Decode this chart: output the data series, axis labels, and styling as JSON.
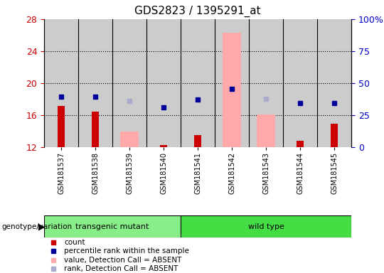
{
  "title": "GDS2823 / 1395291_at",
  "samples": [
    "GSM181537",
    "GSM181538",
    "GSM181539",
    "GSM181540",
    "GSM181541",
    "GSM181542",
    "GSM181543",
    "GSM181544",
    "GSM181545"
  ],
  "group_transgenic": [
    0,
    1,
    2,
    3
  ],
  "group_wildtype": [
    4,
    5,
    6,
    7,
    8
  ],
  "ylim_left": [
    12,
    28
  ],
  "ylim_right": [
    0,
    100
  ],
  "yticks_left": [
    12,
    16,
    20,
    24,
    28
  ],
  "yticks_right": [
    0,
    25,
    50,
    75,
    100
  ],
  "ytick_right_labels": [
    "0",
    "25",
    "50",
    "75",
    "100%"
  ],
  "red_bars": [
    17.2,
    16.5,
    null,
    12.3,
    13.5,
    null,
    null,
    12.8,
    15.0
  ],
  "pink_bars": [
    null,
    null,
    14.0,
    null,
    null,
    26.3,
    16.1,
    null,
    null
  ],
  "blue_squares": [
    18.3,
    18.3,
    null,
    17.0,
    18.0,
    19.3,
    null,
    17.5,
    17.5
  ],
  "lightblue_squares": [
    null,
    null,
    17.8,
    null,
    null,
    null,
    18.1,
    null,
    null
  ],
  "bar_bottom": 12,
  "red_color": "#cc0000",
  "pink_color": "#ffaaaa",
  "blue_color": "#000099",
  "lightblue_color": "#aaaacc",
  "group_color_transgenic": "#88ee88",
  "group_color_wildtype": "#44dd44",
  "bg_color": "#cccccc",
  "left_axis_color": "#cc0000",
  "right_axis_color": "#0000cc",
  "grid_yticks": [
    16,
    20,
    24
  ],
  "legend_items": [
    {
      "color": "#cc0000",
      "label": "count"
    },
    {
      "color": "#000099",
      "label": "percentile rank within the sample"
    },
    {
      "color": "#ffaaaa",
      "label": "value, Detection Call = ABSENT"
    },
    {
      "color": "#aaaacc",
      "label": "rank, Detection Call = ABSENT"
    }
  ]
}
